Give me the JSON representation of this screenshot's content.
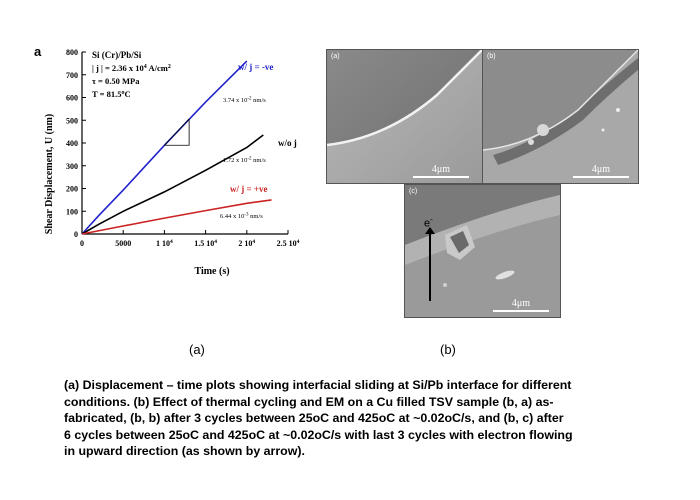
{
  "figure": {
    "panel_a_letter": "a",
    "sub_label_a": "(a)",
    "sub_label_b": "(b)"
  },
  "chart_data": {
    "type": "line",
    "title": "",
    "xlabel": "Time (s)",
    "ylabel": "Shear Displacement, U (nm)",
    "xlim": [
      0,
      25000
    ],
    "ylim": [
      0,
      800
    ],
    "x_ticks": [
      0,
      5000,
      10000,
      15000,
      20000,
      25000
    ],
    "x_tick_labels": [
      "0",
      "5000",
      "1 10",
      "1.5 10",
      "2 10",
      "2.5 10"
    ],
    "x_tick_exponent": "4",
    "y_ticks": [
      0,
      100,
      200,
      300,
      400,
      500,
      600,
      700,
      800
    ],
    "y_tick_labels": [
      "0",
      "100",
      "200",
      "300",
      "400",
      "500",
      "600",
      "700",
      "800"
    ],
    "conditions": {
      "line1": "Si (Cr)/Pb/Si",
      "line2_pre": "| j | = 2.36 x 10",
      "line2_exp": "4",
      "line2_post": " A/cm",
      "line2_unit_exp": "2",
      "line3": "τ = 0.50 MPa",
      "line4_pre": "T = 81.5",
      "line4_deg": "o",
      "line4_post": "C"
    },
    "series": [
      {
        "name": "w/ j = -ve",
        "color": "#2222cc",
        "x": [
          0,
          2000,
          5000,
          10000,
          15000,
          20000
        ],
        "y": [
          0,
          80,
          193,
          390,
          580,
          760
        ],
        "slope_pre": "3.74 x 10",
        "slope_exp": "-2",
        "slope_post": " nm/s"
      },
      {
        "name": "w/o j",
        "color": "#000000",
        "x": [
          0,
          2000,
          5000,
          10000,
          15000,
          20000,
          22000
        ],
        "y": [
          0,
          42,
          100,
          185,
          280,
          380,
          435
        ],
        "slope_pre": "1.72 x 10",
        "slope_exp": "-2",
        "slope_post": " nm/s"
      },
      {
        "name": "w/ j = +ve",
        "color": "#cc2222",
        "x": [
          0,
          5000,
          10000,
          15000,
          20000,
          23000
        ],
        "y": [
          0,
          35,
          70,
          103,
          135,
          150
        ],
        "slope_pre": "6.44 x 10",
        "slope_exp": "-3",
        "slope_post": " nm/s"
      }
    ]
  },
  "sem_panels": [
    {
      "tag": "(a)",
      "scale": "4μm"
    },
    {
      "tag": "(b)",
      "scale": "4μm"
    },
    {
      "tag": "(c)",
      "scale": "4μm",
      "electron": "e",
      "electron_sup": "-"
    }
  ],
  "caption": {
    "line1": "(a) Displacement – time plots showing interfacial sliding at Si/Pb interface for different",
    "line2": "conditions. (b) Effect of thermal cycling and EM on a Cu filled TSV sample (b, a) as-",
    "line3": "fabricated, (b, b) after 3 cycles between 25oC and 425oC at ~0.02oC/s, and (b, c) after",
    "line4": "6 cycles between 25oC and 425oC at ~0.02oC/s with last 3 cycles with electron flowing",
    "line5": "in upward direction (as shown by arrow)."
  }
}
